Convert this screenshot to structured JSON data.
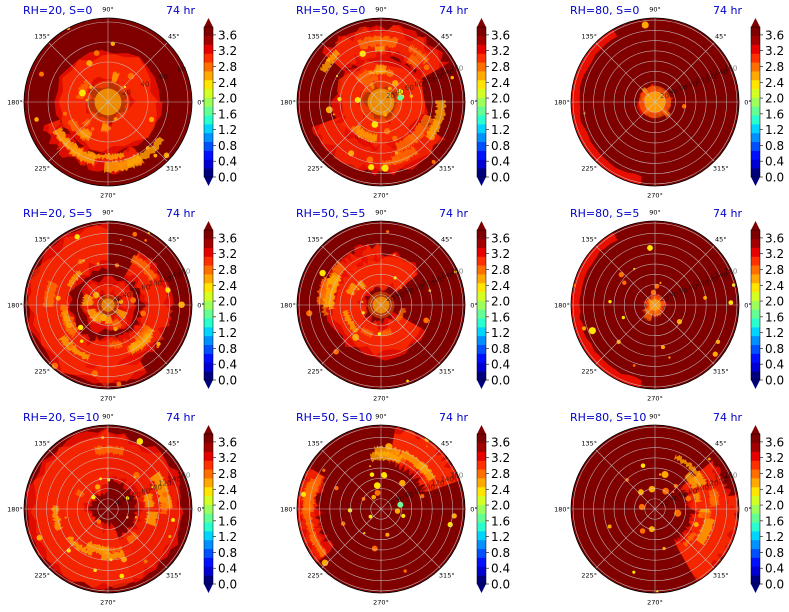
{
  "figure": {
    "colormap": [
      "#00007f",
      "#0000d4",
      "#0010ff",
      "#0050ff",
      "#0090ff",
      "#00d4ff",
      "#29ffce",
      "#63ff94",
      "#9cff5a",
      "#d4ff23",
      "#ffe500",
      "#ffa800",
      "#ff6f00",
      "#ff3000",
      "#e70000",
      "#a30000",
      "#7f0000"
    ],
    "panel_background": "#800000",
    "title_color": "#0000cc",
    "grid_color": "#c9c9c9"
  },
  "chart_data": [
    {
      "type": "heatmap",
      "projection": "polar",
      "title_left": "RH=20, S=0",
      "title_right": "74 hr",
      "r_tick_labels": [
        "20",
        "40",
        "60",
        "80"
      ],
      "theta_tick_labels": [
        "90°",
        "45°",
        "0°",
        "315°",
        "270°",
        "225°",
        "180°",
        "135°"
      ],
      "colorbar_ticks": [
        "3.6",
        "3.2",
        "2.8",
        "2.4",
        "2.0",
        "1.6",
        "1.2",
        "0.8",
        "0.4",
        "0.0"
      ],
      "clim": [
        0.0,
        3.8
      ],
      "feature": "broad central ring"
    },
    {
      "type": "heatmap",
      "projection": "polar",
      "title_left": "RH=50, S=0",
      "title_right": "74 hr",
      "r_tick_labels": [
        "20",
        "40",
        "60",
        "80",
        "100",
        "120",
        "140",
        "160"
      ],
      "theta_tick_labels": [
        "90°",
        "45°",
        "0°",
        "315°",
        "270°",
        "225°",
        "180°",
        "135°"
      ],
      "colorbar_ticks": [
        "3.6",
        "3.2",
        "2.8",
        "2.4",
        "2.0",
        "1.6",
        "1.2",
        "0.8",
        "0.4",
        "0.0"
      ],
      "clim": [
        0.0,
        3.8
      ],
      "feature": "ring with outer spiral bands"
    },
    {
      "type": "heatmap",
      "projection": "polar",
      "title_left": "RH=80, S=0",
      "title_right": "74 hr",
      "r_tick_labels": [
        "20",
        "40",
        "60",
        "80",
        "100",
        "120",
        "140",
        "160"
      ],
      "theta_tick_labels": [
        "90°",
        "45°",
        "0°",
        "315°",
        "270°",
        "225°",
        "180°",
        "135°"
      ],
      "colorbar_ticks": [
        "3.6",
        "3.2",
        "2.8",
        "2.4",
        "2.0",
        "1.6",
        "1.2",
        "0.8",
        "0.4",
        "0.0"
      ],
      "clim": [
        0.0,
        3.8
      ],
      "feature": "small compact core"
    },
    {
      "type": "heatmap",
      "projection": "polar",
      "title_left": "RH=20, S=5",
      "title_right": "74 hr",
      "r_tick_labels": [
        "20",
        "40",
        "60",
        "80",
        "100",
        "120",
        "140",
        "160"
      ],
      "theta_tick_labels": [
        "90°",
        "45°",
        "0°",
        "315°",
        "270°",
        "225°",
        "180°",
        "135°"
      ],
      "colorbar_ticks": [
        "3.6",
        "3.2",
        "2.8",
        "2.4",
        "2.0",
        "1.6",
        "1.2",
        "0.8",
        "0.4",
        "0.0"
      ],
      "clim": [
        0.0,
        3.8
      ],
      "feature": "wide spiral bands"
    },
    {
      "type": "heatmap",
      "projection": "polar",
      "title_left": "RH=50, S=5",
      "title_right": "74 hr",
      "r_tick_labels": [
        "20",
        "40",
        "60",
        "80",
        "100",
        "120",
        "140",
        "160"
      ],
      "theta_tick_labels": [
        "90°",
        "45°",
        "0°",
        "315°",
        "270°",
        "225°",
        "180°",
        "135°"
      ],
      "colorbar_ticks": [
        "3.6",
        "3.2",
        "2.8",
        "2.4",
        "2.0",
        "1.6",
        "1.2",
        "0.8",
        "0.4",
        "0.0"
      ],
      "clim": [
        0.0,
        3.8
      ],
      "feature": "ring open to the east"
    },
    {
      "type": "heatmap",
      "projection": "polar",
      "title_left": "RH=80, S=5",
      "title_right": "74 hr",
      "r_tick_labels": [
        "20",
        "40",
        "60",
        "80",
        "100",
        "120",
        "140",
        "160"
      ],
      "theta_tick_labels": [
        "90°",
        "45°",
        "0°",
        "315°",
        "270°",
        "225°",
        "180°",
        "135°"
      ],
      "colorbar_ticks": [
        "3.6",
        "3.2",
        "2.8",
        "2.4",
        "2.0",
        "1.6",
        "1.2",
        "0.8",
        "0.4",
        "0.0"
      ],
      "clim": [
        0.0,
        3.8
      ],
      "feature": "small core and scattered cells"
    },
    {
      "type": "heatmap",
      "projection": "polar",
      "title_left": "RH=20, S=10",
      "title_right": "74 hr",
      "r_tick_labels": [
        "20",
        "40",
        "60",
        "80",
        "100",
        "120",
        "140",
        "160"
      ],
      "theta_tick_labels": [
        "90°",
        "45°",
        "0°",
        "315°",
        "270°",
        "225°",
        "180°",
        "135°"
      ],
      "colorbar_ticks": [
        "3.6",
        "3.2",
        "2.8",
        "2.4",
        "2.0",
        "1.6",
        "1.2",
        "0.8",
        "0.4",
        "0.0"
      ],
      "clim": [
        0.0,
        3.8
      ],
      "feature": "west-side bands"
    },
    {
      "type": "heatmap",
      "projection": "polar",
      "title_left": "RH=50, S=10",
      "title_right": "74 hr",
      "r_tick_labels": [
        "20",
        "40",
        "60",
        "80",
        "100",
        "120",
        "140",
        "160"
      ],
      "theta_tick_labels": [
        "90°",
        "45°",
        "0°",
        "315°",
        "270°",
        "225°",
        "180°",
        "135°"
      ],
      "colorbar_ticks": [
        "3.6",
        "3.2",
        "2.8",
        "2.4",
        "2.0",
        "1.6",
        "1.2",
        "0.8",
        "0.4",
        "0.0"
      ],
      "clim": [
        0.0,
        3.8
      ],
      "feature": "north-east quadrant band"
    },
    {
      "type": "heatmap",
      "projection": "polar",
      "title_left": "RH=80, S=10",
      "title_right": "74 hr",
      "r_tick_labels": [
        "20",
        "40",
        "60",
        "80",
        "100",
        "120",
        "140",
        "160"
      ],
      "theta_tick_labels": [
        "90°",
        "45°",
        "0°",
        "315°",
        "270°",
        "225°",
        "180°",
        "135°"
      ],
      "colorbar_ticks": [
        "3.6",
        "3.2",
        "2.8",
        "2.4",
        "2.0",
        "1.6",
        "1.2",
        "0.8",
        "0.4",
        "0.0"
      ],
      "clim": [
        0.0,
        3.8
      ],
      "feature": "east and south-east cells"
    }
  ]
}
